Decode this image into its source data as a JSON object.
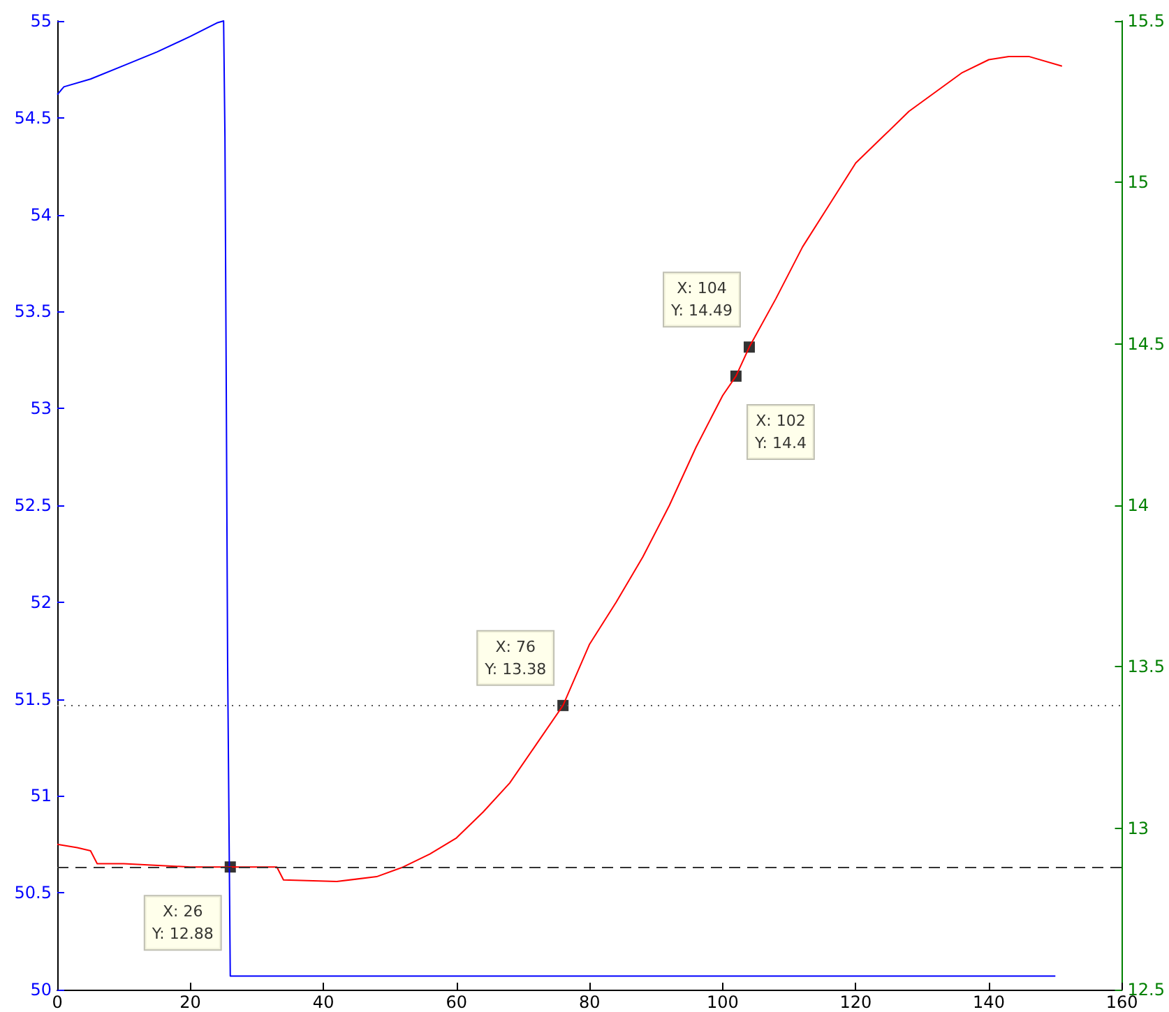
{
  "chart_data": {
    "type": "line",
    "xlim": [
      0,
      160
    ],
    "xticks": [
      0,
      20,
      40,
      60,
      80,
      100,
      120,
      140,
      160
    ],
    "ylim": [
      50,
      55
    ],
    "yticks": [
      50,
      50.5,
      51,
      51.5,
      52,
      52.5,
      53,
      53.5,
      54,
      54.5,
      55
    ],
    "y2lim": [
      12.5,
      15.5
    ],
    "y2ticks": [
      12.5,
      13,
      13.5,
      14,
      14.5,
      15,
      15.5
    ],
    "grid": false,
    "marker": "none",
    "line_style": "solid",
    "series": [
      {
        "type": "scatter",
        "axis": "y2",
        "marker": "square",
        "color": "#000000",
        "x": [
          26,
          76,
          102,
          104
        ],
        "values": [
          12.88,
          13.38,
          14.4,
          14.49
        ],
        "value_labels": [
          "X: 26\nY: 12.88",
          "X: 76\nY: 13.38",
          "X: 102\nY: 14.4",
          "X: 104\nY: 14.49"
        ]
      },
      {
        "color": "#0000ff",
        "x": [
          0,
          1,
          5,
          10,
          15,
          20,
          24,
          25,
          25.2,
          25.4,
          25.6,
          26,
          150
        ],
        "values": [
          54.62,
          54.66,
          54.7,
          54.77,
          54.84,
          54.92,
          54.99,
          55,
          54.4,
          53.1,
          51.7,
          50.07,
          50.07
        ]
      },
      {
        "color": "#ff0000",
        "axis": "y2",
        "x": [
          0,
          3,
          5,
          6,
          10,
          20,
          26,
          33,
          34,
          42,
          48,
          52,
          56,
          60,
          64,
          68,
          72,
          76,
          80,
          84,
          88,
          92,
          96,
          100,
          102,
          104,
          108,
          112,
          116,
          120,
          124,
          128,
          132,
          136,
          140,
          143,
          146,
          151
        ],
        "values": [
          12.95,
          12.94,
          12.93,
          12.89,
          12.89,
          12.88,
          12.88,
          12.88,
          12.84,
          12.835,
          12.85,
          12.88,
          12.92,
          12.97,
          13.05,
          13.14,
          13.26,
          13.38,
          13.57,
          13.7,
          13.84,
          14.0,
          14.18,
          14.34,
          14.4,
          14.49,
          14.64,
          14.8,
          14.93,
          15.06,
          15.14,
          15.22,
          15.28,
          15.34,
          15.38,
          15.39,
          15.39,
          15.36
        ]
      }
    ],
    "ref_lines": [
      {
        "axis": "y2",
        "value": 12.88,
        "color": "#333333",
        "line_style": "dashed"
      },
      {
        "axis": "y2",
        "value": 13.38,
        "color": "#555555",
        "line_style": "dotted"
      }
    ]
  }
}
